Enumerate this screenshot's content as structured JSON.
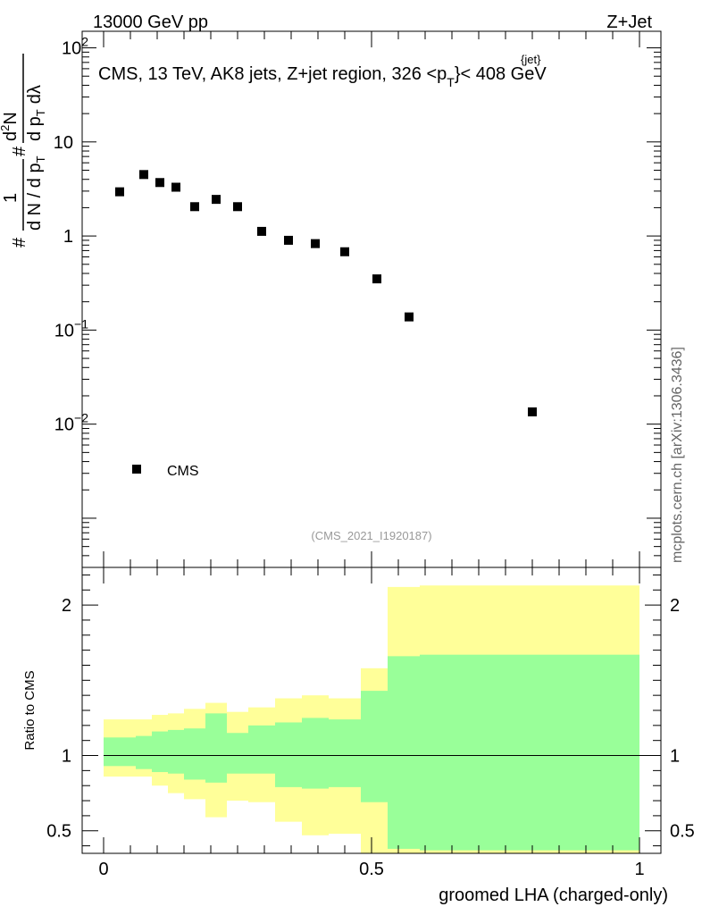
{
  "header": {
    "left": "13000 GeV pp",
    "right": "Z+Jet",
    "side_label": "mcplots.cern.ch [arXiv:1306.3436]"
  },
  "colors": {
    "band_outer": "#ffff99",
    "band_inner": "#99ff99",
    "marker": "#000000"
  },
  "chart_data": [
    {
      "type": "scatter",
      "title": "CMS, 13 TeV, AK8 jets, Z+jet region, 326 <p_T^{jet}< 408 GeV",
      "title_parts": {
        "main": "CMS, 13 TeV, AK8 jets, Z+jet region, 326 <p",
        "sup": "{jet}",
        "sub": "T",
        "tail": "}< 408 GeV"
      },
      "ylabel": "1/dN/dpT d²N/dpT dλ",
      "ylabel_parts": {
        "frac1_num": "1",
        "frac1_den": "d N / d p",
        "frac1_den_sub": "T",
        "frac2_num": "d",
        "frac2_num_sup": "2",
        "frac2_num_tail": "N",
        "frac2_den": "d p",
        "frac2_den_sub": "T",
        "frac2_den_tail": "dλ",
        "hash": "#"
      },
      "yscale": "log",
      "ylim": [
        0.0003,
        150
      ],
      "xlim": [
        -0.04,
        1.04
      ],
      "y_ticks": [
        {
          "value": 100,
          "base": "10",
          "exp": "2"
        },
        {
          "value": 10,
          "base": "10",
          "exp": ""
        },
        {
          "value": 1,
          "base": "1",
          "exp": ""
        },
        {
          "value": 0.1,
          "base": "10",
          "exp": "−1"
        },
        {
          "value": 0.01,
          "base": "10",
          "exp": "−2"
        }
      ],
      "series": [
        {
          "name": "CMS",
          "x": [
            0.03,
            0.075,
            0.105,
            0.135,
            0.17,
            0.21,
            0.25,
            0.295,
            0.345,
            0.395,
            0.45,
            0.51,
            0.57,
            0.8
          ],
          "y": [
            2.95,
            4.5,
            3.7,
            3.3,
            2.05,
            2.45,
            2.05,
            1.12,
            0.9,
            0.83,
            0.68,
            0.35,
            0.138,
            0.0135
          ]
        }
      ],
      "legend": {
        "label": "CMS",
        "position": "bottom-left"
      },
      "watermark": "(CMS_2021_I1920187)"
    },
    {
      "type": "area",
      "ylabel": "Ratio to CMS",
      "xlabel": "groomed LHA (charged-only)",
      "xlim": [
        -0.04,
        1.04
      ],
      "ylim": [
        0.35,
        2.25
      ],
      "y_ticks": [
        {
          "value": 0.5,
          "label": "0.5"
        },
        {
          "value": 1,
          "label": "1"
        },
        {
          "value": 2,
          "label": "2"
        }
      ],
      "x_ticks": [
        {
          "value": 0,
          "label": "0"
        },
        {
          "value": 0.5,
          "label": "0.5"
        },
        {
          "value": 1,
          "label": "1"
        }
      ],
      "reference_line": 1,
      "bins": [
        {
          "lo": 0.0,
          "hi": 0.06,
          "yellow": [
            0.86,
            1.24
          ],
          "green": [
            0.93,
            1.12
          ]
        },
        {
          "lo": 0.06,
          "hi": 0.09,
          "yellow": [
            0.86,
            1.24
          ],
          "green": [
            0.91,
            1.13
          ]
        },
        {
          "lo": 0.09,
          "hi": 0.12,
          "yellow": [
            0.8,
            1.27
          ],
          "green": [
            0.89,
            1.16
          ]
        },
        {
          "lo": 0.12,
          "hi": 0.15,
          "yellow": [
            0.75,
            1.28
          ],
          "green": [
            0.88,
            1.17
          ]
        },
        {
          "lo": 0.15,
          "hi": 0.19,
          "yellow": [
            0.71,
            1.31
          ],
          "green": [
            0.84,
            1.18
          ]
        },
        {
          "lo": 0.19,
          "hi": 0.23,
          "yellow": [
            0.59,
            1.35
          ],
          "green": [
            0.82,
            1.28
          ]
        },
        {
          "lo": 0.23,
          "hi": 0.27,
          "yellow": [
            0.7,
            1.29
          ],
          "green": [
            0.88,
            1.15
          ]
        },
        {
          "lo": 0.27,
          "hi": 0.32,
          "yellow": [
            0.69,
            1.32
          ],
          "green": [
            0.88,
            1.2
          ]
        },
        {
          "lo": 0.32,
          "hi": 0.37,
          "yellow": [
            0.56,
            1.38
          ],
          "green": [
            0.79,
            1.22
          ]
        },
        {
          "lo": 0.37,
          "hi": 0.42,
          "yellow": [
            0.47,
            1.4
          ],
          "green": [
            0.78,
            1.25
          ]
        },
        {
          "lo": 0.42,
          "hi": 0.48,
          "yellow": [
            0.48,
            1.38
          ],
          "green": [
            0.79,
            1.24
          ]
        },
        {
          "lo": 0.48,
          "hi": 0.53,
          "yellow": [
            0.35,
            1.58
          ],
          "green": [
            0.69,
            1.43
          ]
        },
        {
          "lo": 0.53,
          "hi": 0.59,
          "yellow": [
            0.35,
            2.12
          ],
          "green": [
            0.38,
            1.66
          ]
        },
        {
          "lo": 0.59,
          "hi": 1.0,
          "yellow": [
            0.35,
            2.13
          ],
          "green": [
            0.37,
            1.67
          ]
        }
      ]
    }
  ]
}
